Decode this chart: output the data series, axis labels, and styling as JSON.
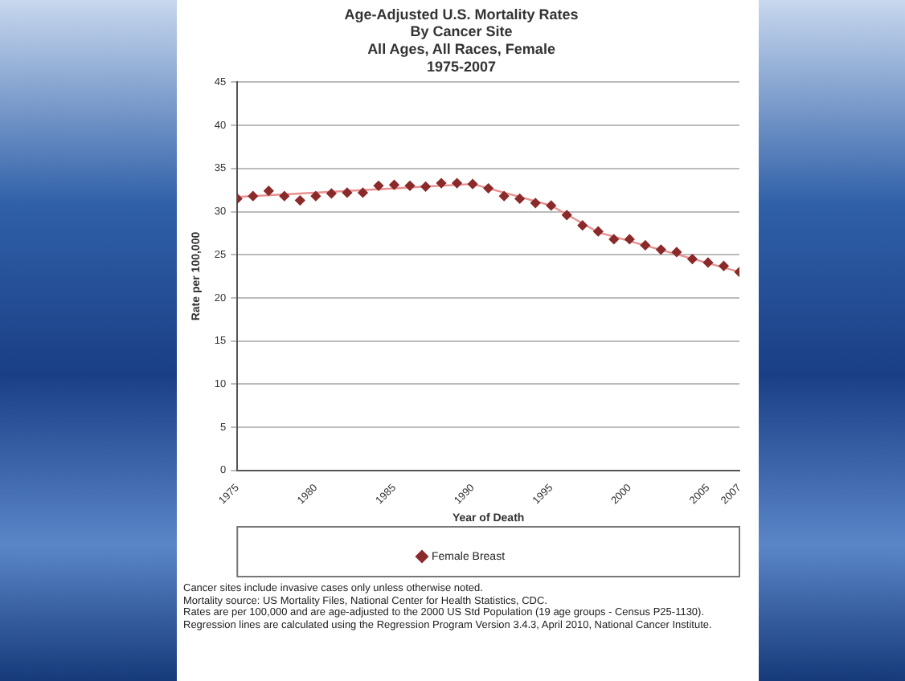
{
  "chart_data": {
    "type": "scatter",
    "title": "Age-Adjusted U.S. Mortality Rates\nBy Cancer Site\nAll Ages, All Races, Female\n1975-2007",
    "xlabel": "Year of Death",
    "ylabel": "Rate per 100,000",
    "x": [
      1975,
      1976,
      1977,
      1978,
      1979,
      1980,
      1981,
      1982,
      1983,
      1984,
      1985,
      1986,
      1987,
      1988,
      1989,
      1990,
      1991,
      1992,
      1993,
      1994,
      1995,
      1996,
      1997,
      1998,
      1999,
      2000,
      2001,
      2002,
      2003,
      2004,
      2005,
      2006,
      2007
    ],
    "series": [
      {
        "name": "Female Breast",
        "color": "#8b2a2a",
        "values": [
          31.5,
          31.8,
          32.4,
          31.8,
          31.3,
          31.8,
          32.1,
          32.2,
          32.2,
          33.0,
          33.1,
          33.0,
          32.9,
          33.3,
          33.3,
          33.2,
          32.7,
          31.8,
          31.5,
          31.0,
          30.7,
          29.6,
          28.4,
          27.7,
          26.8,
          26.8,
          26.1,
          25.6,
          25.3,
          24.5,
          24.1,
          23.7,
          23.0
        ]
      },
      {
        "type": "line",
        "marker": "none",
        "color": "#e89090",
        "x": [
          1975,
          1990,
          1995,
          1998,
          2007
        ],
        "values": [
          31.7,
          33.2,
          30.7,
          27.6,
          23.0
        ]
      }
    ],
    "xlim": [
      1975,
      2007
    ],
    "xticks": [
      1975,
      1980,
      1985,
      1990,
      1995,
      2000,
      2005,
      2007
    ],
    "ylim": [
      0,
      45
    ],
    "yticks": [
      0,
      5,
      10,
      15,
      20,
      25,
      30,
      35,
      40,
      45
    ],
    "grid": "y",
    "legend": "bottom",
    "marker": "diamond",
    "annotations": [
      "Cancer sites include invasive cases only unless otherwise noted.",
      "Mortality source: US Mortality Files, National Center for Health Statistics, CDC.",
      "Rates are per 100,000 and are age-adjusted to the 2000 US Std Population (19 age groups - Census P25-1130). Regression lines are calculated using the Regression Program Version 3.4.3, April 2010, National Cancer Institute."
    ]
  }
}
